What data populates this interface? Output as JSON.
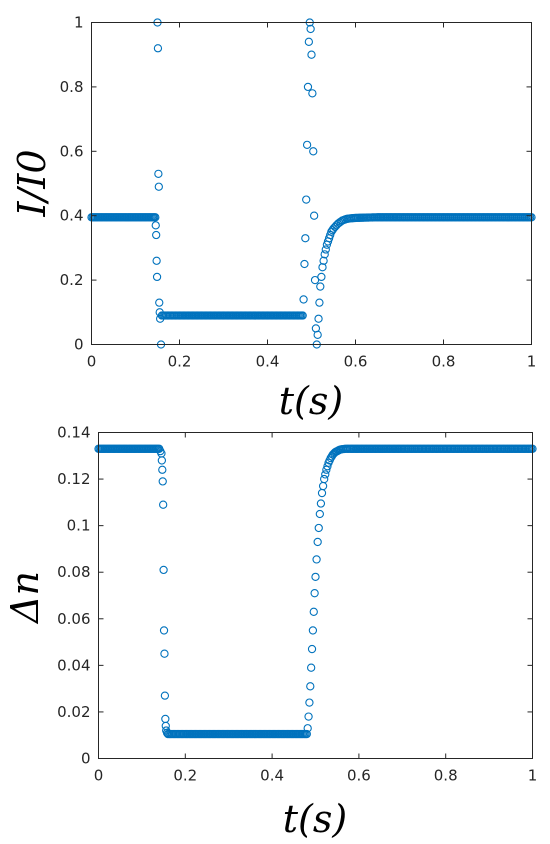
{
  "colors": {
    "series": "#0072BD",
    "axis": "#262626",
    "background": "#ffffff"
  },
  "chart_data": [
    {
      "type": "scatter",
      "marker": "open-circle",
      "xlabel": "t(s)",
      "ylabel": "I/I0",
      "xlim": [
        0,
        1
      ],
      "ylim": [
        0,
        1
      ],
      "xticks": [
        "0",
        "0.2",
        "0.4",
        "0.6",
        "0.8",
        "1"
      ],
      "yticks": [
        "0",
        "0.2",
        "0.4",
        "0.6",
        "0.8",
        "1"
      ],
      "xtick_values": [
        0,
        0.2,
        0.4,
        0.6,
        0.8,
        1
      ],
      "ytick_values": [
        0,
        0.2,
        0.4,
        0.6,
        0.8,
        1
      ],
      "series": [
        {
          "x": [
            0,
            0.02,
            0.04,
            0.06,
            0.08,
            0.1,
            0.12,
            0.14,
            0.145,
            0.146,
            0.147,
            0.148,
            0.149,
            0.15,
            0.151,
            0.152,
            0.153,
            0.154,
            0.155,
            0.156,
            0.158,
            0.16,
            0.2,
            0.25,
            0.3,
            0.35,
            0.4,
            0.45,
            0.48,
            0.482,
            0.484,
            0.486,
            0.488,
            0.49,
            0.492,
            0.494,
            0.496,
            0.498,
            0.5,
            0.502,
            0.504,
            0.506,
            0.508,
            0.51,
            0.512,
            0.514,
            0.516,
            0.518,
            0.52,
            0.525,
            0.53,
            0.535,
            0.54,
            0.545,
            0.55,
            0.56,
            0.57,
            0.58,
            0.59,
            0.6,
            0.62,
            0.65,
            0.7,
            0.8,
            0.9,
            1
          ],
          "y": [
            0.395,
            0.395,
            0.395,
            0.395,
            0.395,
            0.395,
            0.395,
            0.395,
            0.395,
            0.37,
            0.34,
            0.26,
            0.21,
            1.0,
            0.92,
            0.53,
            0.49,
            0.13,
            0.1,
            0.08,
            0.0,
            0.09,
            0.09,
            0.09,
            0.09,
            0.09,
            0.09,
            0.09,
            0.09,
            0.14,
            0.25,
            0.33,
            0.45,
            0.62,
            0.8,
            0.94,
            1.0,
            0.98,
            0.9,
            0.78,
            0.6,
            0.4,
            0.2,
            0.05,
            0.0,
            0.03,
            0.08,
            0.13,
            0.18,
            0.24,
            0.28,
            0.31,
            0.33,
            0.35,
            0.36,
            0.375,
            0.385,
            0.39,
            0.392,
            0.393,
            0.394,
            0.395,
            0.395,
            0.395,
            0.395,
            0.395
          ]
        }
      ]
    },
    {
      "type": "scatter",
      "marker": "open-circle",
      "xlabel": "t(s)",
      "ylabel": "Δn",
      "xlim": [
        0,
        1
      ],
      "ylim": [
        0,
        0.14
      ],
      "xticks": [
        "0",
        "0.2",
        "0.4",
        "0.6",
        "0.8",
        "1"
      ],
      "yticks": [
        "0",
        "0.02",
        "0.04",
        "0.06",
        "0.08",
        "0.1",
        "0.12",
        "0.14"
      ],
      "xtick_values": [
        0,
        0.2,
        0.4,
        0.6,
        0.8,
        1
      ],
      "ytick_values": [
        0,
        0.02,
        0.04,
        0.06,
        0.08,
        0.1,
        0.12,
        0.14
      ],
      "series": [
        {
          "x": [
            0,
            0.02,
            0.04,
            0.06,
            0.08,
            0.1,
            0.12,
            0.14,
            0.145,
            0.146,
            0.147,
            0.148,
            0.149,
            0.15,
            0.151,
            0.152,
            0.153,
            0.154,
            0.155,
            0.156,
            0.158,
            0.16,
            0.2,
            0.25,
            0.3,
            0.35,
            0.4,
            0.45,
            0.48,
            0.482,
            0.484,
            0.486,
            0.488,
            0.49,
            0.492,
            0.494,
            0.496,
            0.498,
            0.5,
            0.505,
            0.51,
            0.515,
            0.52,
            0.525,
            0.53,
            0.535,
            0.54,
            0.545,
            0.55,
            0.555,
            0.56,
            0.57,
            0.58,
            0.6,
            0.65,
            0.7,
            0.8,
            0.9,
            1
          ],
          "y": [
            0.133,
            0.133,
            0.133,
            0.133,
            0.133,
            0.133,
            0.133,
            0.133,
            0.131,
            0.128,
            0.124,
            0.119,
            0.109,
            0.081,
            0.055,
            0.045,
            0.027,
            0.017,
            0.014,
            0.012,
            0.011,
            0.0105,
            0.0105,
            0.0105,
            0.0105,
            0.0105,
            0.0105,
            0.0105,
            0.0105,
            0.013,
            0.018,
            0.024,
            0.031,
            0.039,
            0.047,
            0.055,
            0.063,
            0.071,
            0.078,
            0.093,
            0.105,
            0.114,
            0.12,
            0.124,
            0.127,
            0.129,
            0.1305,
            0.1315,
            0.132,
            0.1325,
            0.1328,
            0.133,
            0.133,
            0.133,
            0.133,
            0.133,
            0.133,
            0.133,
            0.133
          ]
        }
      ]
    }
  ]
}
